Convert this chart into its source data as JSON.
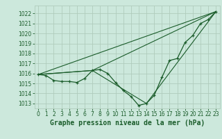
{
  "title": "Graphe pression niveau de la mer (hPa)",
  "background_color": "#cce8dc",
  "grid_color": "#b0ccbc",
  "line_color": "#1a5c2a",
  "marker_color": "#1a5c2a",
  "xlim": [
    -0.5,
    23.5
  ],
  "ylim": [
    1012.5,
    1022.8
  ],
  "yticks": [
    1013,
    1014,
    1015,
    1016,
    1017,
    1018,
    1019,
    1020,
    1021,
    1022
  ],
  "xticks": [
    0,
    1,
    2,
    3,
    4,
    5,
    6,
    7,
    8,
    9,
    10,
    11,
    12,
    13,
    14,
    15,
    16,
    17,
    18,
    19,
    20,
    21,
    22,
    23
  ],
  "series1_x": [
    0,
    1,
    2,
    3,
    4,
    5,
    6,
    7,
    8,
    9,
    10,
    11,
    12,
    13,
    14,
    15,
    16,
    17,
    18,
    19,
    20,
    21,
    22,
    23
  ],
  "series1_y": [
    1015.9,
    1015.8,
    1015.3,
    1015.2,
    1015.2,
    1015.1,
    1015.5,
    1016.3,
    1016.4,
    1016.0,
    1015.1,
    1014.3,
    1013.7,
    1012.8,
    1013.0,
    1013.8,
    1015.6,
    1017.3,
    1017.5,
    1019.1,
    1019.8,
    1021.0,
    1021.4,
    1022.2
  ],
  "series2_x": [
    0,
    23
  ],
  "series2_y": [
    1015.9,
    1022.2
  ],
  "series3_x": [
    0,
    7,
    23
  ],
  "series3_y": [
    1015.9,
    1016.3,
    1022.2
  ],
  "series4_x": [
    0,
    7,
    14,
    23
  ],
  "series4_y": [
    1015.9,
    1016.3,
    1013.0,
    1022.2
  ],
  "tick_fontsize": 5.5,
  "xlabel_fontsize": 7.0,
  "figsize": [
    3.2,
    2.0
  ],
  "dpi": 100
}
